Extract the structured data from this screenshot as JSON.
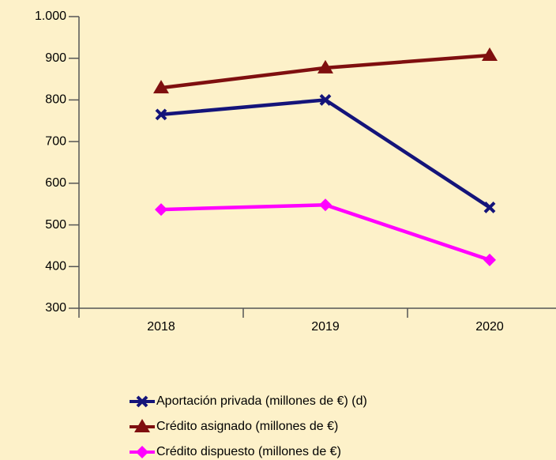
{
  "chart_data": {
    "type": "line",
    "categories": [
      "2018",
      "2019",
      "2020"
    ],
    "series": [
      {
        "name": "Aportación privada (millones de €) (d)",
        "color": "#14147a",
        "marker": "x",
        "values": [
          765,
          800,
          542
        ]
      },
      {
        "name": "Crédito asignado (millones de €)",
        "color": "#7f0f0f",
        "marker": "triangle",
        "values": [
          829,
          877,
          907
        ]
      },
      {
        "name": "Crédito dispuesto (millones de €)",
        "color": "#ff00ff",
        "marker": "diamond",
        "values": [
          537,
          548,
          416
        ]
      }
    ],
    "ylim": [
      300,
      1000
    ],
    "yticks": [
      300,
      400,
      500,
      600,
      700,
      800,
      900,
      {
        "value": 1000,
        "label": "1.000"
      }
    ],
    "grid": false,
    "legend": "bottom"
  }
}
